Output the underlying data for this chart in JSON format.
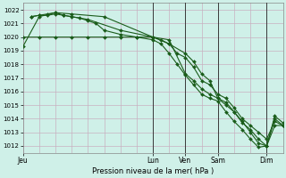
{
  "background_color": "#cff0e8",
  "grid_color": "#c8b0c0",
  "line_color": "#1a5c1a",
  "xlabel": "Pression niveau de la mer( hPa )",
  "ylim": [
    1011.5,
    1022.5
  ],
  "yticks": [
    1012,
    1013,
    1014,
    1015,
    1016,
    1017,
    1018,
    1019,
    1020,
    1021,
    1022
  ],
  "xlim": [
    0,
    96
  ],
  "day_labels": [
    "Jeu",
    "Lun",
    "Ven",
    "Sam",
    "Dim"
  ],
  "day_positions": [
    0,
    48,
    60,
    72,
    90
  ],
  "vline_positions": [
    48,
    60,
    72,
    90
  ],
  "series": [
    {
      "x": [
        0,
        6,
        12,
        18,
        24,
        30,
        36,
        42,
        48,
        51,
        54,
        57,
        60,
        63,
        66,
        69,
        72,
        75,
        78,
        81,
        84,
        87,
        90,
        93,
        96
      ],
      "y": [
        1020.0,
        1020.0,
        1020.0,
        1020.0,
        1020.0,
        1020.0,
        1020.0,
        1020.0,
        1020.0,
        1019.8,
        1019.5,
        1018.8,
        1018.5,
        1017.8,
        1016.8,
        1016.5,
        1015.8,
        1015.5,
        1014.8,
        1014.0,
        1013.5,
        1013.0,
        1012.5,
        1013.8,
        1013.5
      ]
    },
    {
      "x": [
        3,
        6,
        9,
        12,
        15,
        18,
        21,
        24,
        27,
        30,
        36,
        42,
        48,
        51,
        54,
        57,
        60,
        63,
        66,
        69,
        72,
        75,
        78,
        81,
        84,
        87,
        90,
        93,
        96
      ],
      "y": [
        1021.5,
        1021.6,
        1021.6,
        1021.7,
        1021.6,
        1021.5,
        1021.4,
        1021.2,
        1021.0,
        1020.5,
        1020.2,
        1020.0,
        1019.8,
        1019.5,
        1018.8,
        1018.0,
        1017.2,
        1016.5,
        1015.8,
        1015.5,
        1015.3,
        1014.5,
        1013.8,
        1013.2,
        1012.5,
        1011.9,
        1012.0,
        1013.5,
        1013.5
      ]
    },
    {
      "x": [
        3,
        6,
        9,
        12,
        15,
        24,
        36,
        48,
        54,
        60,
        63,
        66,
        69,
        72,
        75,
        78,
        81,
        84,
        87,
        90,
        93,
        96
      ],
      "y": [
        1021.5,
        1021.6,
        1021.7,
        1021.8,
        1021.6,
        1021.3,
        1020.5,
        1020.0,
        1019.8,
        1017.3,
        1016.8,
        1016.2,
        1015.8,
        1015.5,
        1015.0,
        1014.5,
        1013.8,
        1013.0,
        1012.2,
        1012.0,
        1014.0,
        1013.5
      ]
    },
    {
      "x": [
        0,
        6,
        12,
        18,
        30,
        48,
        54,
        60,
        63,
        66,
        69,
        72,
        75,
        78,
        81,
        84,
        87,
        90,
        93,
        96
      ],
      "y": [
        1019.3,
        1021.5,
        1021.8,
        1021.7,
        1021.5,
        1020.0,
        1019.5,
        1018.8,
        1018.2,
        1017.3,
        1016.8,
        1015.5,
        1015.2,
        1014.5,
        1013.7,
        1013.2,
        1012.5,
        1012.0,
        1014.2,
        1013.7
      ]
    }
  ]
}
